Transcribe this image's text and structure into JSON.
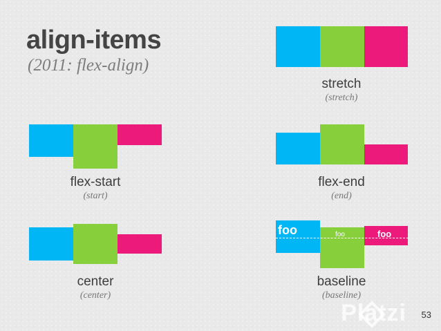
{
  "slide": {
    "title": "align-items",
    "subtitle": "(2011: flex-align)",
    "page_number": "53"
  },
  "demos": {
    "stretch": {
      "label": "stretch",
      "sublabel": "(stretch)"
    },
    "flex_start": {
      "label": "flex-start",
      "sublabel": "(start)"
    },
    "flex_end": {
      "label": "flex-end",
      "sublabel": "(end)"
    },
    "center": {
      "label": "center",
      "sublabel": "(center)"
    },
    "baseline": {
      "label": "baseline",
      "sublabel": "(baseline)",
      "foo_large": "foo",
      "foo_small": "foo",
      "foo_medium": "foo"
    }
  },
  "watermark": {
    "text": "Platzi"
  },
  "colors": {
    "cyan": "#00b6f4",
    "green": "#87d03c",
    "magenta": "#ec1a7b",
    "background": "#e9e9e9"
  }
}
